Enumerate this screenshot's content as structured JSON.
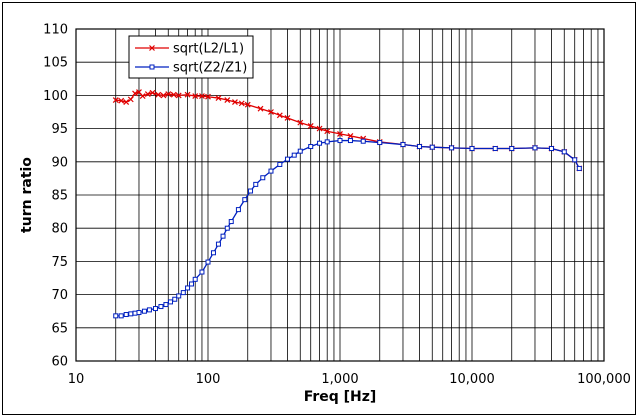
{
  "chart_data": {
    "type": "line",
    "xscale": "log",
    "xlim": [
      10,
      100000
    ],
    "ylim": [
      60,
      110
    ],
    "xlabel": "Freq [Hz]",
    "ylabel": "turn ratio",
    "xticks": [
      {
        "value": 10,
        "label": "10"
      },
      {
        "value": 100,
        "label": "100"
      },
      {
        "value": 1000,
        "label": "1,000"
      },
      {
        "value": 10000,
        "label": "10,000"
      },
      {
        "value": 100000,
        "label": "100,000"
      }
    ],
    "yticks": [
      {
        "value": 60,
        "label": "60"
      },
      {
        "value": 65,
        "label": "65"
      },
      {
        "value": 70,
        "label": "70"
      },
      {
        "value": 75,
        "label": "75"
      },
      {
        "value": 80,
        "label": "80"
      },
      {
        "value": 85,
        "label": "85"
      },
      {
        "value": 90,
        "label": "90"
      },
      {
        "value": 95,
        "label": "95"
      },
      {
        "value": 100,
        "label": "100"
      },
      {
        "value": 105,
        "label": "105"
      },
      {
        "value": 110,
        "label": "110"
      }
    ],
    "grid": true,
    "legend": "top-left",
    "series": [
      {
        "name": "sqrt(L2/L1)",
        "color": "#e00000",
        "marker": "x",
        "points": [
          [
            20,
            99.3
          ],
          [
            22,
            99.2
          ],
          [
            24,
            99.0
          ],
          [
            26,
            99.4
          ],
          [
            28,
            100.3
          ],
          [
            30,
            100.5
          ],
          [
            32,
            99.9
          ],
          [
            35,
            100.2
          ],
          [
            38,
            100.4
          ],
          [
            42,
            100.1
          ],
          [
            46,
            100.0
          ],
          [
            50,
            100.2
          ],
          [
            55,
            100.1
          ],
          [
            60,
            100.0
          ],
          [
            70,
            100.1
          ],
          [
            80,
            99.9
          ],
          [
            90,
            99.9
          ],
          [
            100,
            99.8
          ],
          [
            120,
            99.6
          ],
          [
            140,
            99.3
          ],
          [
            160,
            99.0
          ],
          [
            180,
            98.8
          ],
          [
            200,
            98.6
          ],
          [
            250,
            98.0
          ],
          [
            300,
            97.5
          ],
          [
            350,
            97.0
          ],
          [
            400,
            96.6
          ],
          [
            500,
            95.9
          ],
          [
            600,
            95.4
          ],
          [
            700,
            95.0
          ],
          [
            800,
            94.6
          ],
          [
            1000,
            94.2
          ],
          [
            1200,
            93.9
          ],
          [
            1500,
            93.5
          ],
          [
            2000,
            93.0
          ],
          [
            3000,
            92.6
          ],
          [
            4000,
            92.3
          ],
          [
            5000,
            92.2
          ],
          [
            7000,
            92.1
          ],
          [
            10000,
            92.0
          ],
          [
            15000,
            92.0
          ],
          [
            20000,
            92.0
          ],
          [
            30000,
            92.1
          ],
          [
            40000,
            92.0
          ],
          [
            50000,
            91.5
          ],
          [
            60000,
            90.3
          ],
          [
            65000,
            89.0
          ]
        ]
      },
      {
        "name": "sqrt(Z2/Z1)",
        "color": "#0020c0",
        "marker": "square",
        "points": [
          [
            20,
            66.8
          ],
          [
            22,
            66.8
          ],
          [
            24,
            67.0
          ],
          [
            26,
            67.1
          ],
          [
            28,
            67.2
          ],
          [
            30,
            67.3
          ],
          [
            33,
            67.5
          ],
          [
            36,
            67.7
          ],
          [
            40,
            67.9
          ],
          [
            44,
            68.2
          ],
          [
            48,
            68.5
          ],
          [
            52,
            68.9
          ],
          [
            56,
            69.3
          ],
          [
            60,
            69.8
          ],
          [
            65,
            70.3
          ],
          [
            70,
            71.0
          ],
          [
            75,
            71.6
          ],
          [
            80,
            72.3
          ],
          [
            90,
            73.4
          ],
          [
            100,
            74.9
          ],
          [
            110,
            76.3
          ],
          [
            120,
            77.6
          ],
          [
            130,
            78.8
          ],
          [
            140,
            80.0
          ],
          [
            150,
            81.0
          ],
          [
            170,
            82.8
          ],
          [
            190,
            84.3
          ],
          [
            210,
            85.6
          ],
          [
            230,
            86.6
          ],
          [
            260,
            87.6
          ],
          [
            300,
            88.6
          ],
          [
            350,
            89.6
          ],
          [
            400,
            90.4
          ],
          [
            450,
            91.0
          ],
          [
            500,
            91.6
          ],
          [
            600,
            92.3
          ],
          [
            700,
            92.8
          ],
          [
            800,
            93.0
          ],
          [
            1000,
            93.2
          ],
          [
            1200,
            93.2
          ],
          [
            1500,
            93.1
          ],
          [
            2000,
            92.9
          ],
          [
            3000,
            92.6
          ],
          [
            4000,
            92.3
          ],
          [
            5000,
            92.2
          ],
          [
            7000,
            92.1
          ],
          [
            10000,
            92.0
          ],
          [
            15000,
            92.0
          ],
          [
            20000,
            92.0
          ],
          [
            30000,
            92.1
          ],
          [
            40000,
            92.0
          ],
          [
            50000,
            91.5
          ],
          [
            60000,
            90.3
          ],
          [
            65000,
            89.0
          ]
        ]
      }
    ]
  }
}
